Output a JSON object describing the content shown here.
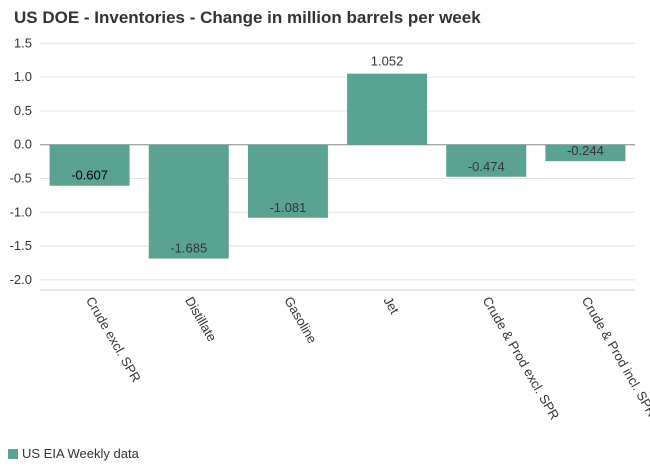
{
  "chart_data": {
    "type": "bar",
    "title": "US DOE - Inventories - Change in million barrels per week",
    "categories": [
      "Crude excl. SPR",
      "Distillate",
      "Gasoline",
      "Jet",
      "Crude & Prod excl. SPR",
      "Crude & Prod incl. SPR"
    ],
    "series": [
      {
        "name": "US EIA Weekly data",
        "values": [
          -0.607,
          -1.685,
          -1.081,
          1.052,
          -0.474,
          -0.244
        ]
      }
    ],
    "data_labels": [
      "-0.607",
      "-1.685",
      "-1.081",
      "1.052",
      "-0.474",
      "-0.244"
    ],
    "yticks": [
      1.5,
      1.0,
      0.5,
      0.0,
      -0.5,
      -1.0,
      -1.5,
      -2.0
    ],
    "ytick_labels": [
      "1.5",
      "1.0",
      "0.5",
      "0.0",
      "-0.5",
      "-1.0",
      "-1.5",
      "-2.0"
    ],
    "ylim": [
      -2.15,
      1.55
    ],
    "xlabel": "",
    "ylabel": "",
    "grid": true,
    "legend_position": "bottom-left",
    "bar_color": "#5aa393"
  }
}
